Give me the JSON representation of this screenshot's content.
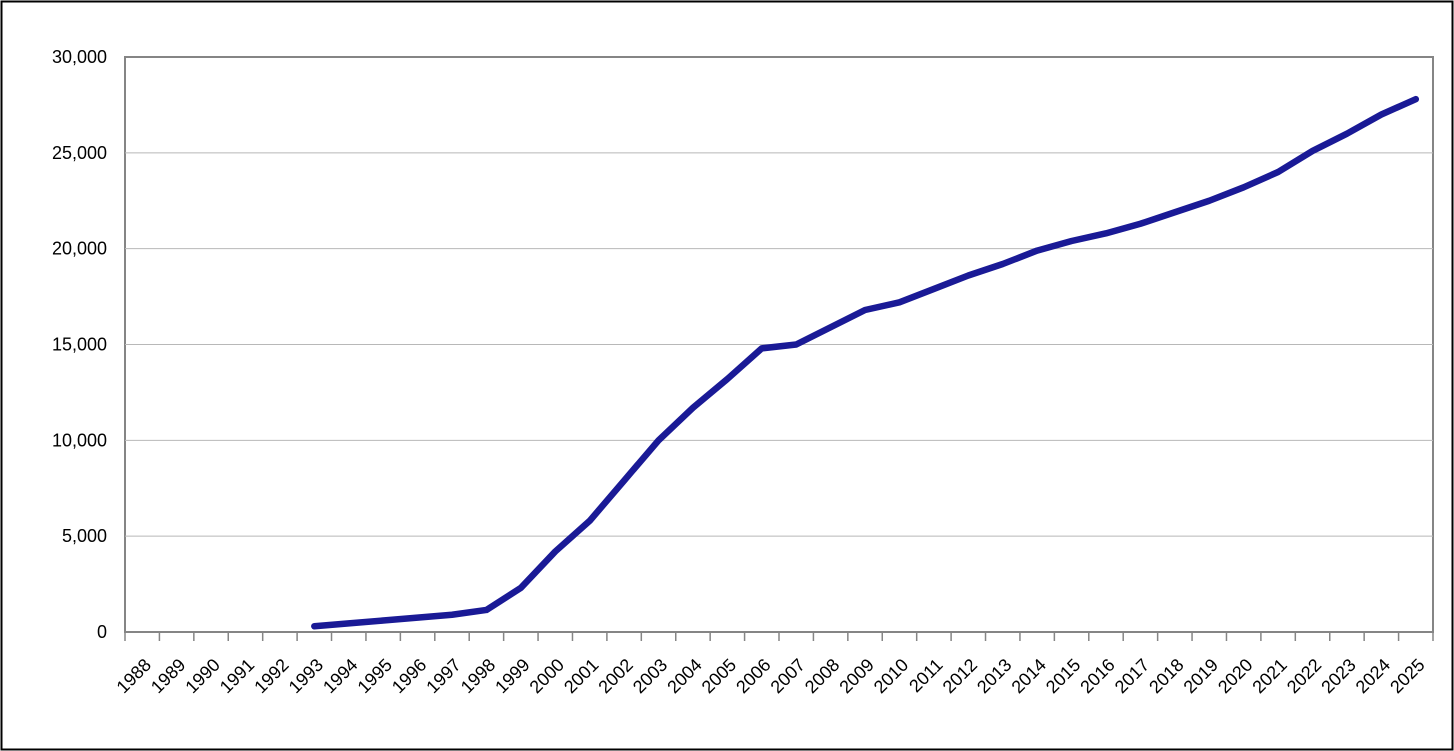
{
  "page": {
    "background_color": "#ffffff",
    "outer_border_color": "#000000",
    "title": ""
  },
  "chart_data": {
    "type": "line",
    "title": "",
    "xlabel": "",
    "ylabel": "",
    "categories": [
      "1988",
      "1989",
      "1990",
      "1991",
      "1992",
      "1993",
      "1994",
      "1995",
      "1996",
      "1997",
      "1998",
      "1999",
      "2000",
      "2001",
      "2002",
      "2003",
      "2004",
      "2005",
      "2006",
      "2007",
      "2008",
      "2009",
      "2010",
      "2011",
      "2012",
      "2013",
      "2014",
      "2015",
      "2016",
      "2017",
      "2018",
      "2019",
      "2020",
      "2021",
      "2022",
      "2023",
      "2024",
      "2025"
    ],
    "series": [
      {
        "name": "series-1",
        "color": "#1a1a96",
        "values": [
          null,
          null,
          null,
          null,
          null,
          300,
          450,
          600,
          750,
          900,
          1150,
          2300,
          4200,
          5800,
          7900,
          10000,
          11700,
          13200,
          14800,
          15000,
          15900,
          16800,
          17200,
          17900,
          18600,
          19200,
          19900,
          20400,
          20800,
          21300,
          21900,
          22500,
          23200,
          24000,
          25100,
          26000,
          27000,
          27800
        ]
      }
    ],
    "ylim": [
      0,
      30000
    ],
    "ytick_step": 5000,
    "ytick_labels": [
      "0",
      "5,000",
      "10,000",
      "15,000",
      "20,000",
      "25,000",
      "30,000"
    ],
    "grid": true,
    "legend_position": "none",
    "gridline_color": "#b8b8b8",
    "axis_color": "#858585",
    "tick_color": "#858585",
    "label_color": "#000000",
    "plot_background": "#ffffff",
    "x_label_rotation_deg": -45
  }
}
